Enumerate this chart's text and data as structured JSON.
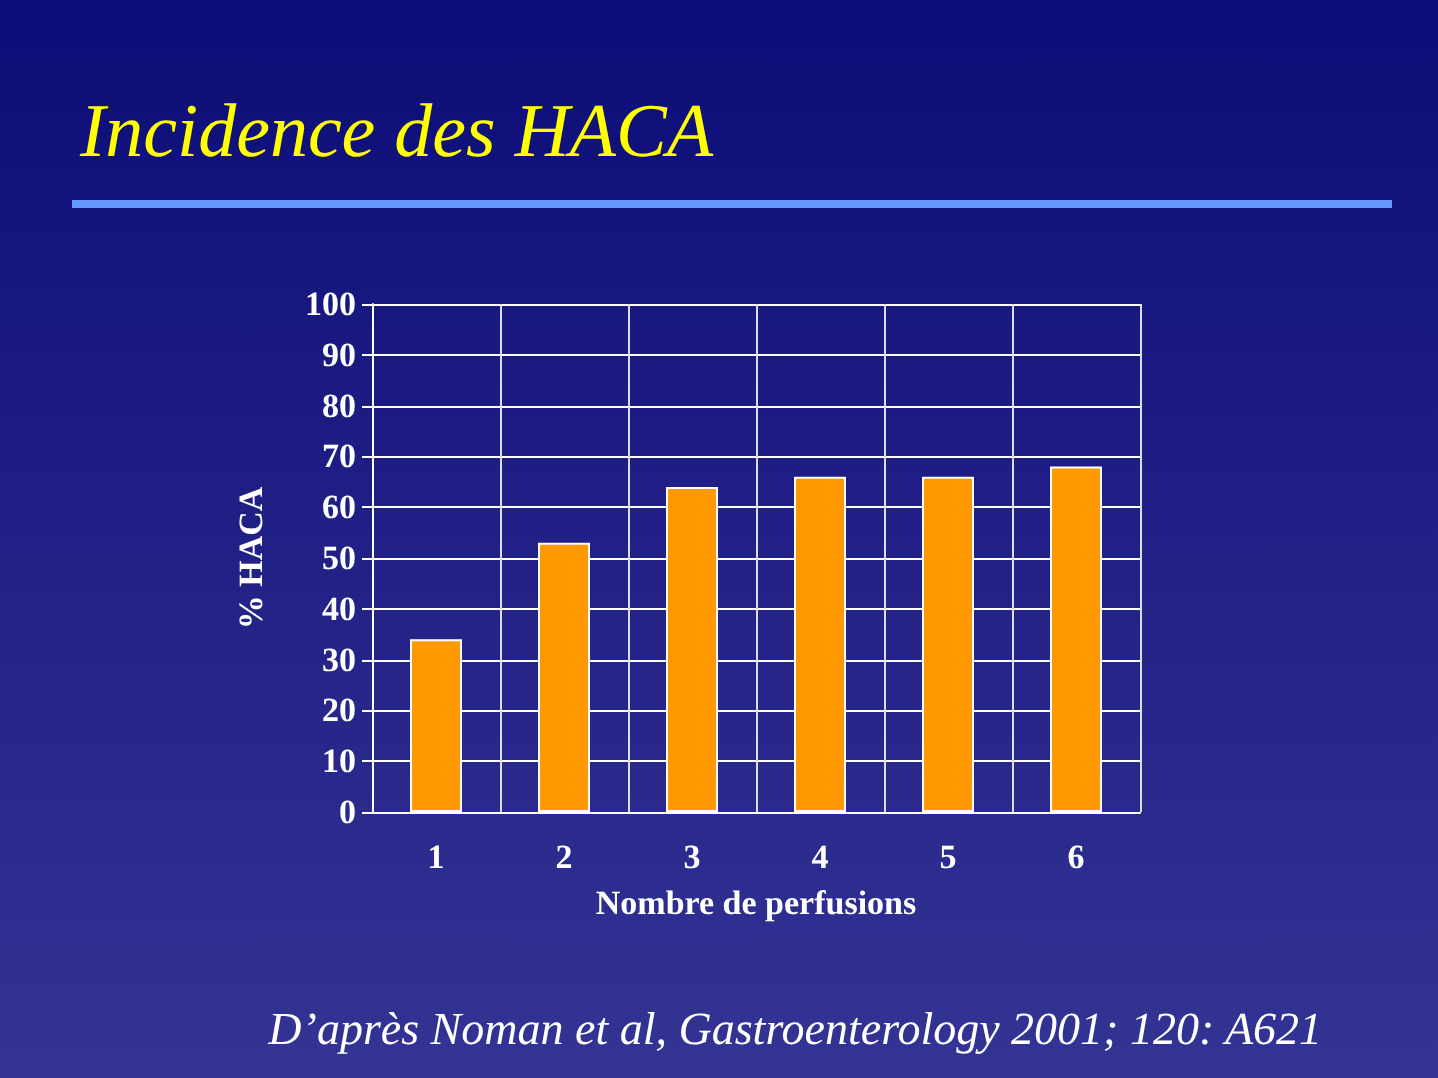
{
  "chart_data": {
    "type": "bar",
    "title": "Incidence des HACA",
    "categories": [
      "1",
      "2",
      "3",
      "4",
      "5",
      "6"
    ],
    "values": [
      34,
      53,
      64,
      66,
      66,
      68
    ],
    "color": "#ff9900",
    "xlabel": "Nombre de perfusions",
    "ylabel": "% HACA",
    "ylim": [
      0,
      100
    ],
    "yticks": [
      0,
      10,
      20,
      30,
      40,
      50,
      60,
      70,
      80,
      90,
      100
    ],
    "grid": true,
    "annotations": [
      "D’après Noman et al, Gastroenterology 2001; 120: A621"
    ]
  }
}
